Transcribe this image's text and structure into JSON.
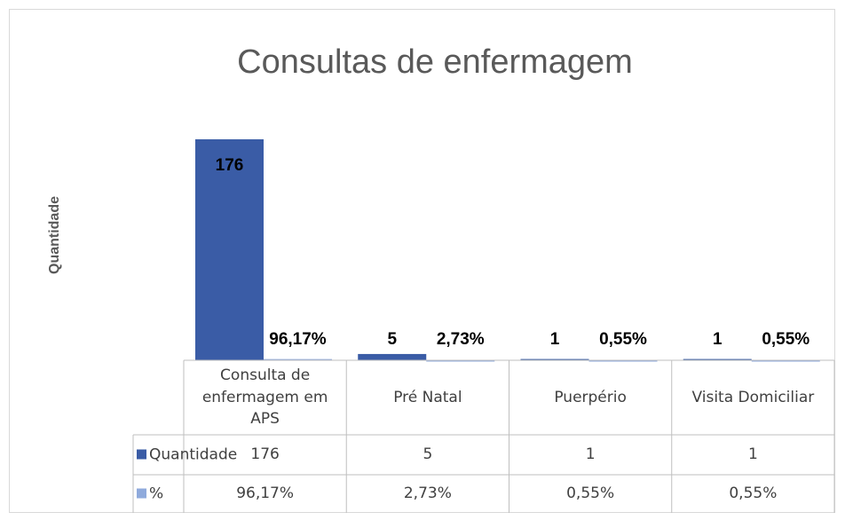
{
  "chart_data": {
    "type": "bar",
    "title": "Consultas de enfermagem",
    "y_label": "Quantidade",
    "categories": [
      "Consulta de enfermagem em APS",
      "Pré Natal",
      "Puerpério",
      "Visita Domiciliar"
    ],
    "series": [
      {
        "name": "Quantidade",
        "color": "#3a5ca6",
        "values": [
          176,
          5,
          1,
          1
        ]
      },
      {
        "name": "%",
        "color": "#8faadc",
        "values": [
          0.9617,
          0.0273,
          0.0055,
          0.0055
        ],
        "value_labels": [
          "96,17%",
          "2,73%",
          "0,55%",
          "0,55%"
        ]
      }
    ],
    "ylim": [
      0,
      200
    ]
  }
}
